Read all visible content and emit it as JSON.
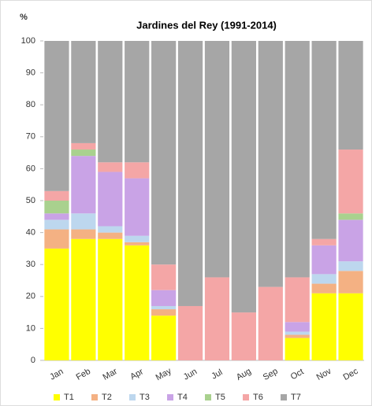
{
  "chart_data": {
    "type": "stacked_bar",
    "title": "Jardines del Rey (1991-2014)",
    "y_label": "%",
    "categories": [
      "Jan",
      "Feb",
      "Mar",
      "Apr",
      "May",
      "Jun",
      "Jul",
      "Aug",
      "Sep",
      "Oct",
      "Nov",
      "Dec"
    ],
    "series": [
      {
        "name": "T1",
        "color": "#ffff00",
        "values": [
          35,
          38,
          38,
          36,
          14,
          0,
          0,
          0,
          0,
          7,
          21,
          21
        ]
      },
      {
        "name": "T2",
        "color": "#f4b183",
        "values": [
          6,
          3,
          2,
          1,
          2,
          0,
          0,
          0,
          0,
          1,
          3,
          7
        ]
      },
      {
        "name": "T3",
        "color": "#bdd7ee",
        "values": [
          3,
          5,
          2,
          2,
          1,
          0,
          0,
          0,
          0,
          1,
          3,
          3
        ]
      },
      {
        "name": "T4",
        "color": "#c9a3e6",
        "values": [
          2,
          18,
          17,
          18,
          5,
          0,
          0,
          0,
          0,
          3,
          9,
          13
        ]
      },
      {
        "name": "T5",
        "color": "#a9d18e",
        "values": [
          4,
          2,
          0,
          0,
          0,
          0,
          0,
          0,
          0,
          0,
          0,
          2
        ]
      },
      {
        "name": "T6",
        "color": "#f4a6a6",
        "values": [
          3,
          2,
          3,
          5,
          8,
          17,
          26,
          15,
          23,
          14,
          2,
          20
        ]
      },
      {
        "name": "T7",
        "color": "#a6a6a6",
        "values": [
          47,
          32,
          38,
          38,
          70,
          83,
          74,
          85,
          77,
          74,
          62,
          34
        ]
      }
    ],
    "ylim": [
      0,
      100
    ],
    "yticks": [
      0,
      10,
      20,
      30,
      40,
      50,
      60,
      70,
      80,
      90,
      100
    ],
    "legend": "bottom"
  }
}
